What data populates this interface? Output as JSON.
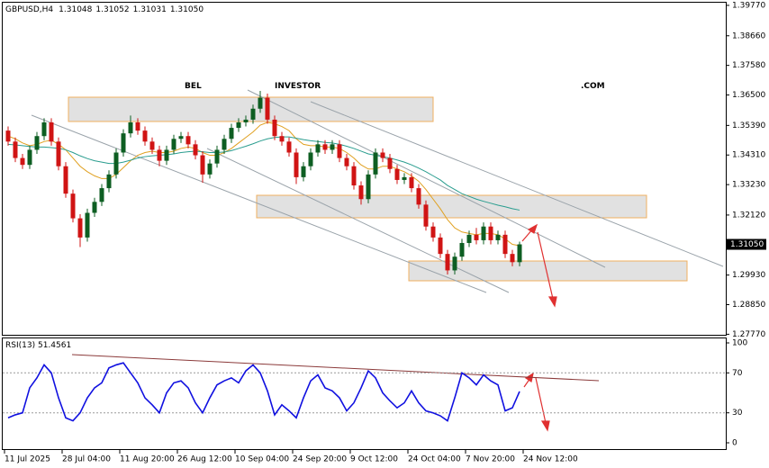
{
  "watermark": [
    "BEL",
    "INVESTOR",
    ".COM"
  ],
  "chart_data": {
    "type": "candlestick",
    "title": "GBPUSD,H4",
    "header_values": [
      1.31048,
      1.31052,
      1.31031,
      {
        "value": 1.3105,
        "label": "1.31050"
      }
    ],
    "bull_color": "#0d5e22",
    "bear_color": "#d01414",
    "ylim": [
      1.2775,
      1.399
    ],
    "yticks": [
      {
        "value": 1.3977,
        "label": "1.39770"
      },
      {
        "value": 1.3866,
        "label": "1.38660"
      },
      {
        "value": 1.3758,
        "label": "1.37580"
      },
      {
        "value": 1.365,
        "label": "1.36500"
      },
      {
        "value": 1.3539,
        "label": "1.35390"
      },
      {
        "value": 1.3431,
        "label": "1.34310"
      },
      {
        "value": 1.3323,
        "label": "1.33230"
      },
      {
        "value": 1.3212,
        "label": "1.32120"
      },
      {
        "value": 1.2993,
        "label": "1.29930"
      },
      {
        "value": 1.2885,
        "label": "1.28850"
      },
      {
        "value": 1.2777,
        "label": "1.27770"
      }
    ],
    "current_price": {
      "value": 1.3105,
      "label": "1.31050"
    },
    "xticks": [
      {
        "value": 0,
        "label": "11 Jul 2025"
      },
      {
        "value": 8,
        "label": "28 Jul 04:00"
      },
      {
        "value": 16,
        "label": "11 Aug 20:00"
      },
      {
        "value": 24,
        "label": "26 Aug 12:00"
      },
      {
        "value": 32,
        "label": "10 Sep 04:00"
      },
      {
        "value": 40,
        "label": "24 Sep 20:00"
      },
      {
        "value": 48,
        "label": "9 Oct 12:00"
      },
      {
        "value": 56,
        "label": "24 Oct 04:00"
      },
      {
        "value": 64,
        "label": "7 Nov 20:00"
      },
      {
        "value": 72,
        "label": "24 Nov 12:00"
      }
    ],
    "open": [
      1.352,
      1.348,
      1.342,
      1.3395,
      1.345,
      1.35,
      1.355,
      1.348,
      1.339,
      1.329,
      1.32,
      1.313,
      1.322,
      1.326,
      1.331,
      1.336,
      1.344,
      1.351,
      1.355,
      1.352,
      1.348,
      1.345,
      1.341,
      1.345,
      1.349,
      1.35,
      1.347,
      1.343,
      1.336,
      1.34,
      1.345,
      1.349,
      1.353,
      1.355,
      1.356,
      1.36,
      1.364,
      1.356,
      1.35,
      1.348,
      1.344,
      1.335,
      1.339,
      1.344,
      1.347,
      1.345,
      1.347,
      1.342,
      1.339,
      1.332,
      1.327,
      1.336,
      1.344,
      1.342,
      1.338,
      1.334,
      1.335,
      1.331,
      1.325,
      1.317,
      1.313,
      1.307,
      1.301,
      1.306,
      1.311,
      1.314,
      1.312,
      1.317,
      1.312,
      1.314,
      1.307,
      1.304
    ],
    "high": [
      1.3535,
      1.3495,
      1.3435,
      1.3465,
      1.3515,
      1.3565,
      1.3565,
      1.3495,
      1.3405,
      1.3305,
      1.3215,
      1.3235,
      1.3275,
      1.3325,
      1.3375,
      1.3455,
      1.3525,
      1.3575,
      1.3565,
      1.3535,
      1.3495,
      1.3465,
      1.3465,
      1.3505,
      1.3515,
      1.3515,
      1.3485,
      1.3445,
      1.3415,
      1.3465,
      1.3505,
      1.3545,
      1.3565,
      1.3575,
      1.3615,
      1.3665,
      1.3655,
      1.3575,
      1.3515,
      1.3495,
      1.3455,
      1.3405,
      1.3455,
      1.3485,
      1.3485,
      1.3485,
      1.3485,
      1.3435,
      1.3405,
      1.3335,
      1.3375,
      1.3455,
      1.3455,
      1.3435,
      1.3395,
      1.3365,
      1.3365,
      1.3325,
      1.3265,
      1.3185,
      1.3145,
      1.3085,
      1.3075,
      1.3125,
      1.3155,
      1.3165,
      1.3185,
      1.3185,
      1.3155,
      1.3155,
      1.3085,
      1.3115
    ],
    "low": [
      1.3465,
      1.3405,
      1.338,
      1.338,
      1.3435,
      1.3485,
      1.3465,
      1.3375,
      1.3275,
      1.3185,
      1.3095,
      1.3115,
      1.3205,
      1.3245,
      1.3295,
      1.3345,
      1.3425,
      1.3495,
      1.3505,
      1.3465,
      1.3435,
      1.339,
      1.3395,
      1.3435,
      1.3475,
      1.3455,
      1.3415,
      1.333,
      1.3345,
      1.3385,
      1.3435,
      1.3475,
      1.3515,
      1.3535,
      1.3545,
      1.3585,
      1.3545,
      1.3485,
      1.3465,
      1.3425,
      1.3325,
      1.3335,
      1.3375,
      1.3425,
      1.3435,
      1.3435,
      1.3405,
      1.3375,
      1.3305,
      1.325,
      1.3255,
      1.3345,
      1.3405,
      1.3365,
      1.3325,
      1.3325,
      1.3295,
      1.3235,
      1.3155,
      1.3115,
      1.3055,
      1.2995,
      1.2995,
      1.3045,
      1.3095,
      1.3105,
      1.3105,
      1.3105,
      1.3105,
      1.3055,
      1.3025,
      1.3025
    ],
    "close": [
      1.348,
      1.342,
      1.3395,
      1.345,
      1.35,
      1.355,
      1.348,
      1.339,
      1.329,
      1.32,
      1.313,
      1.322,
      1.326,
      1.331,
      1.336,
      1.344,
      1.351,
      1.355,
      1.352,
      1.348,
      1.345,
      1.341,
      1.345,
      1.349,
      1.35,
      1.347,
      1.343,
      1.336,
      1.34,
      1.345,
      1.349,
      1.353,
      1.355,
      1.356,
      1.36,
      1.364,
      1.356,
      1.35,
      1.348,
      1.344,
      1.335,
      1.339,
      1.344,
      1.347,
      1.345,
      1.347,
      1.342,
      1.339,
      1.332,
      1.327,
      1.336,
      1.344,
      1.342,
      1.338,
      1.334,
      1.335,
      1.331,
      1.325,
      1.317,
      1.313,
      1.307,
      1.301,
      1.306,
      1.311,
      1.314,
      1.312,
      1.317,
      1.312,
      1.314,
      1.307,
      1.304,
      1.3105
    ],
    "moving_averages": [
      {
        "color": "#e0a020",
        "values": [
          1.35,
          1.349,
          1.3475,
          1.3465,
          1.347,
          1.348,
          1.3485,
          1.347,
          1.345,
          1.342,
          1.339,
          1.337,
          1.3355,
          1.3345,
          1.3345,
          1.336,
          1.3385,
          1.341,
          1.343,
          1.344,
          1.3445,
          1.344,
          1.344,
          1.3445,
          1.3455,
          1.346,
          1.3455,
          1.344,
          1.343,
          1.343,
          1.344,
          1.3455,
          1.3475,
          1.3495,
          1.3515,
          1.354,
          1.355,
          1.3545,
          1.3535,
          1.352,
          1.349,
          1.347,
          1.3465,
          1.3465,
          1.346,
          1.346,
          1.3455,
          1.344,
          1.342,
          1.3395,
          1.338,
          1.338,
          1.339,
          1.339,
          1.338,
          1.337,
          1.3355,
          1.3335,
          1.3305,
          1.327,
          1.3235,
          1.3195,
          1.3165,
          1.315,
          1.3145,
          1.314,
          1.3145,
          1.3145,
          1.314,
          1.3125,
          1.3105,
          1.31
        ]
      },
      {
        "color": "#2a9d8f",
        "values": [
          1.347,
          1.3468,
          1.3465,
          1.3462,
          1.346,
          1.346,
          1.3458,
          1.3455,
          1.345,
          1.344,
          1.3428,
          1.3418,
          1.341,
          1.3405,
          1.34,
          1.34,
          1.3405,
          1.3412,
          1.342,
          1.3425,
          1.3428,
          1.343,
          1.3432,
          1.3435,
          1.344,
          1.3443,
          1.3445,
          1.3443,
          1.344,
          1.344,
          1.3442,
          1.3447,
          1.3455,
          1.3463,
          1.3472,
          1.3482,
          1.349,
          1.3495,
          1.3497,
          1.3497,
          1.3492,
          1.3487,
          1.3483,
          1.348,
          1.3477,
          1.3475,
          1.347,
          1.3463,
          1.3455,
          1.3445,
          1.3435,
          1.343,
          1.3425,
          1.342,
          1.3413,
          1.3405,
          1.3395,
          1.3383,
          1.337,
          1.3355,
          1.334,
          1.332,
          1.3305,
          1.329,
          1.328,
          1.327,
          1.3262,
          1.3255,
          1.3248,
          1.3242,
          1.3235,
          1.323
        ]
      }
    ],
    "rsi": {
      "label": "RSI(13)",
      "color": "#1010e0",
      "ylim": [
        0,
        100
      ],
      "yticks": [
        0,
        30,
        70,
        100
      ],
      "values": [
        25,
        28,
        30,
        55,
        65,
        78,
        70,
        45,
        25,
        22,
        30,
        45,
        55,
        60,
        75,
        78,
        80,
        70,
        60,
        45,
        38,
        30,
        50,
        60,
        62,
        55,
        40,
        30,
        45,
        58,
        62,
        65,
        60,
        72,
        78,
        70,
        52,
        28,
        38,
        32,
        25,
        45,
        62,
        68,
        55,
        52,
        45,
        32,
        40,
        55,
        72,
        65,
        50,
        42,
        35,
        40,
        52,
        40,
        32,
        30,
        27,
        22,
        45,
        70,
        65,
        58,
        68,
        62,
        58,
        32,
        35,
        51.4561
      ]
    }
  }
}
